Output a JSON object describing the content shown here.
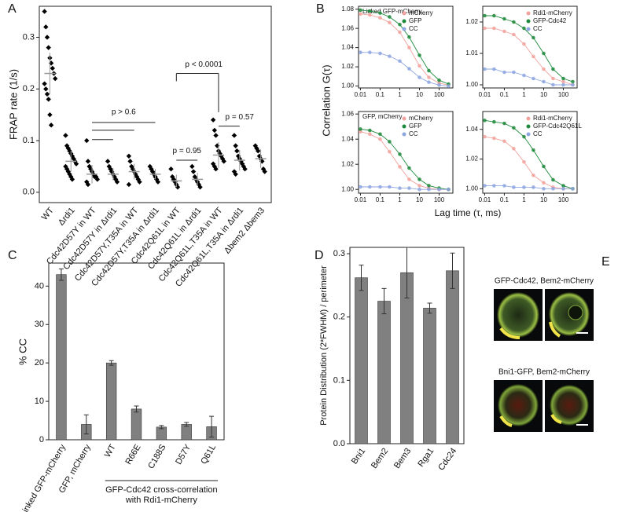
{
  "chart_data": [
    {
      "type": "dotplot",
      "panel": "A",
      "ylabel": "FRAP rate (1/s)",
      "ylim": [
        -0.02,
        0.36
      ],
      "yticks": [
        {
          "value": 0,
          "label": "0.0"
        },
        0.1,
        0.2,
        0.3
      ],
      "categories": [
        "WT",
        "Δrdi1",
        "Cdc42D57Y in WT",
        "Cdc42D57Y in Δrdi1",
        "Cdc42D57Y,T35A in WT",
        "Cdc42D57Y,T35A in Δrdi1",
        "Cdc42Q61L in WT",
        "Cdc42Q61L in Δrdi1",
        "Cdc42Q61L,T35A in WT",
        "Cdc42Q61L,T35A in Δrdi1",
        "Δbem2 Δbem3"
      ],
      "points": [
        [
          0.35,
          0.32,
          0.3,
          0.28,
          0.26,
          0.25,
          0.24,
          0.23,
          0.22,
          0.21,
          0.2,
          0.19,
          0.18,
          0.15,
          0.13
        ],
        [
          0.11,
          0.09,
          0.085,
          0.08,
          0.075,
          0.07,
          0.065,
          0.06,
          0.055,
          0.05,
          0.045,
          0.04,
          0.035,
          0.03,
          0.025
        ],
        [
          0.1,
          0.06,
          0.05,
          0.045,
          0.04,
          0.035,
          0.03,
          0.03,
          0.025,
          0.02,
          0.015
        ],
        [
          0.06,
          0.05,
          0.045,
          0.04,
          0.035,
          0.03,
          0.025,
          0.02
        ],
        [
          0.07,
          0.06,
          0.05,
          0.045,
          0.04,
          0.035,
          0.03,
          0.025,
          0.02,
          0.015
        ],
        [
          0.05,
          0.045,
          0.04,
          0.035,
          0.03,
          0.025,
          0.02
        ],
        [
          0.045,
          0.03,
          0.025,
          0.02,
          0.015,
          0.01
        ],
        [
          0.05,
          0.04,
          0.03,
          0.025,
          0.02,
          0.015,
          0.01
        ],
        [
          0.14,
          0.12,
          0.11,
          0.09,
          0.08,
          0.075,
          0.07,
          0.065,
          0.06,
          0.055,
          0.05,
          0.045
        ],
        [
          0.11,
          0.09,
          0.08,
          0.07,
          0.065,
          0.06,
          0.055,
          0.05,
          0.045,
          0.04,
          0.035
        ],
        [
          0.09,
          0.085,
          0.08,
          0.07,
          0.065,
          0.06,
          0.045,
          0.04
        ]
      ],
      "means": [
        0.23,
        0.06,
        0.035,
        0.035,
        0.04,
        0.035,
        0.022,
        0.025,
        0.072,
        0.062,
        0.065
      ],
      "errors": [
        0.04,
        0.02,
        0.018,
        0.012,
        0.015,
        0.01,
        0.012,
        0.013,
        0.025,
        0.02,
        0.018
      ],
      "annotations": [
        "p > 0.6",
        "p < 0.0001",
        "p = 0.95",
        "p = 0.57"
      ]
    },
    {
      "type": "fcs-grid",
      "panel": "B",
      "xlabel": "Lag time (τ, ms)",
      "ylabel": "Correlation G(τ)",
      "log_x": true,
      "xlim": [
        0.008,
        500
      ],
      "xticks": [
        0.01,
        0.1,
        1,
        10,
        100
      ],
      "x": [
        0.01,
        0.03,
        0.1,
        0.3,
        1,
        3,
        10,
        30,
        100,
        300
      ],
      "subplots": [
        {
          "title": "Linked GFP-mCherry",
          "ylim": [
            0.998,
            1.083
          ],
          "yticks": [
            {
              "value": 1,
              "label": "1.00"
            },
            1.02,
            1.04,
            1.06,
            1.08
          ],
          "series": [
            {
              "name": "mCherry",
              "color": "#f2a29c",
              "values": [
                1.075,
                1.074,
                1.071,
                1.066,
                1.056,
                1.04,
                1.021,
                1.009,
                1.003,
                1.001
              ]
            },
            {
              "name": "GFP",
              "color": "#1e8a3c",
              "values": [
                1.079,
                1.078,
                1.076,
                1.072,
                1.064,
                1.051,
                1.032,
                1.016,
                1.006,
                1.002
              ]
            },
            {
              "name": "CC",
              "color": "#8ea6e0",
              "values": [
                1.035,
                1.035,
                1.034,
                1.031,
                1.026,
                1.018,
                1.009,
                1.004,
                1.001,
                1.0
              ]
            }
          ]
        },
        {
          "ylim": [
            0.999,
            1.025
          ],
          "yticks": [
            {
              "value": 1,
              "label": "1.00"
            },
            1.01,
            1.02
          ],
          "series": [
            {
              "name": "Rdi1-mCherry",
              "color": "#f2a29c",
              "values": [
                1.018,
                1.018,
                1.017,
                1.016,
                1.013,
                1.009,
                1.005,
                1.002,
                1.001,
                1.0
              ]
            },
            {
              "name": "GFP-Cdc42",
              "color": "#1e8a3c",
              "values": [
                1.022,
                1.022,
                1.021,
                1.02,
                1.018,
                1.015,
                1.01,
                1.005,
                1.002,
                1.001
              ]
            },
            {
              "name": "CC",
              "color": "#8ea6e0",
              "values": [
                1.005,
                1.005,
                1.004,
                1.004,
                1.003,
                1.002,
                1.001,
                1.0,
                1.0,
                1.0
              ]
            }
          ]
        },
        {
          "title": "GFP, mCherry",
          "ylim": [
            0.997,
            1.062
          ],
          "yticks": [
            {
              "value": 1,
              "label": "1.00"
            },
            1.02,
            1.04,
            1.06
          ],
          "series": [
            {
              "name": "mCherry",
              "color": "#f2a29c",
              "values": [
                1.046,
                1.044,
                1.04,
                1.03,
                1.018,
                1.008,
                1.003,
                1.001,
                1.0,
                1.0
              ]
            },
            {
              "name": "GFP",
              "color": "#1e8a3c",
              "values": [
                1.048,
                1.047,
                1.044,
                1.038,
                1.028,
                1.017,
                1.008,
                1.003,
                1.001,
                1.0
              ]
            },
            {
              "name": "CC",
              "color": "#8ea6e0",
              "values": [
                1.002,
                1.002,
                1.002,
                1.002,
                1.001,
                1.001,
                1.0,
                1.0,
                1.0,
                1.0
              ]
            }
          ]
        },
        {
          "ylim": [
            0.997,
            1.052
          ],
          "yticks": [
            {
              "value": 1,
              "label": "1.00"
            },
            1.02,
            1.04
          ],
          "series": [
            {
              "name": "Rdi1-mCherry",
              "color": "#f2a29c",
              "values": [
                1.035,
                1.034,
                1.032,
                1.027,
                1.018,
                1.009,
                1.004,
                1.001,
                1.0,
                1.0
              ]
            },
            {
              "name": "GFP-Cdc42Q61L",
              "color": "#1e8a3c",
              "values": [
                1.046,
                1.045,
                1.044,
                1.041,
                1.035,
                1.026,
                1.015,
                1.006,
                1.002,
                1.0
              ]
            },
            {
              "name": "CC",
              "color": "#8ea6e0",
              "values": [
                1.002,
                1.002,
                1.002,
                1.001,
                1.001,
                1.001,
                1.0,
                1.0,
                1.0,
                1.0
              ]
            }
          ]
        }
      ]
    },
    {
      "type": "bar",
      "panel": "C",
      "ylabel": "% CC",
      "color": "#808080",
      "ylim": [
        0,
        46
      ],
      "yticks": [
        0,
        10,
        20,
        30,
        40
      ],
      "categories": [
        "Linked GFP-mCherry",
        "GFP, mCherry",
        "WT",
        "R66E",
        "C188S",
        "D57Y",
        "Q61L"
      ],
      "values": [
        43,
        4,
        20,
        8,
        3.3,
        4,
        3.4
      ],
      "errors": [
        1.5,
        2.5,
        0.6,
        0.8,
        0.4,
        0.5,
        2.7
      ],
      "group_label": [
        "GFP-Cdc42 cross-correlation",
        "with Rdi1-mCherry"
      ]
    },
    {
      "type": "bar",
      "panel": "D",
      "ylabel": "Protein Distribution (2*FWHM) / perimeter",
      "color": "#808080",
      "ylim": [
        0,
        0.31
      ],
      "yticks": [
        {
          "value": 0,
          "label": "0.0"
        },
        0.1,
        0.2,
        0.3
      ],
      "categories": [
        "Bni1",
        "Bem2",
        "Bem3",
        "Rga1",
        "Cdc24"
      ],
      "values": [
        0.262,
        0.225,
        0.27,
        0.214,
        0.273
      ],
      "errors": [
        0.02,
        0.02,
        0.04,
        0.008,
        0.028
      ]
    }
  ],
  "panel_e": {
    "label": "E",
    "captions": [
      "GFP-Cdc42,  Bem2-mCherry",
      "Bni1-GFP,  Bem2-mCherry"
    ]
  }
}
